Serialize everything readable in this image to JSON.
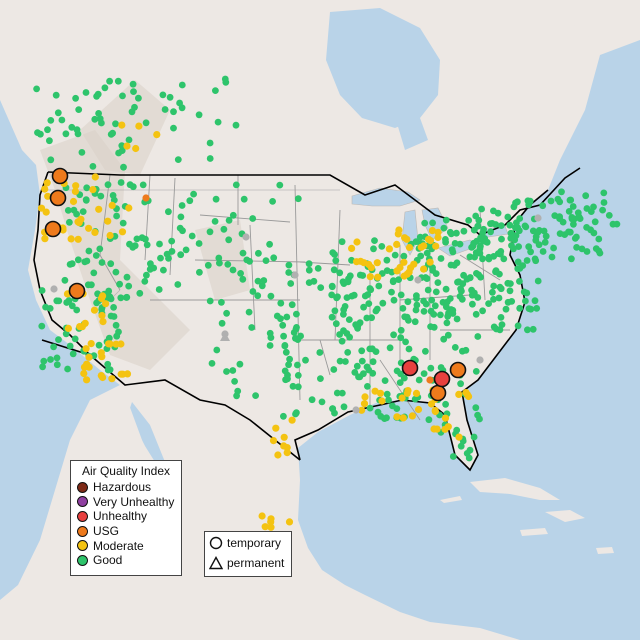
{
  "map": {
    "colors": {
      "ocean": "#b9d3e8",
      "land": "#ede8e4",
      "terrain": "#d9cfc6",
      "border": "#000000",
      "state_line": "#9a9a9a",
      "gray_site": "#b0b0b0"
    },
    "legend_aqi": {
      "title": "Air Quality Index",
      "items": [
        {
          "label": "Hazardous",
          "color": "#7e2a16"
        },
        {
          "label": "Very Unhealthy",
          "color": "#8f3fa0"
        },
        {
          "label": "Unhealthy",
          "color": "#e8403f"
        },
        {
          "label": "USG",
          "color": "#ee7a1c"
        },
        {
          "label": "Moderate",
          "color": "#f4c311"
        },
        {
          "label": "Good",
          "color": "#2ec46b"
        }
      ]
    },
    "legend_site": {
      "items": [
        {
          "label": "temporary",
          "shape": "circle-icon"
        },
        {
          "label": "permanent",
          "shape": "triangle-icon"
        }
      ]
    }
  }
}
